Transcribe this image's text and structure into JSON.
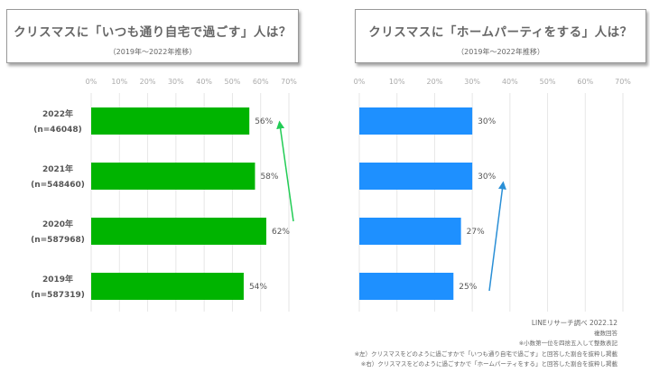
{
  "chart_data": [
    {
      "type": "bar",
      "orientation": "horizontal",
      "title": "クリスマスに「いつも通り自宅で過ごす」人は？",
      "subtitle": "（2019年～2022年推移）",
      "categories": [
        [
          "2022年",
          "(n=46048)"
        ],
        [
          "2021年",
          "(n=548460)"
        ],
        [
          "2020年",
          "(n=587968)"
        ],
        [
          "2019年",
          "(n=587319)"
        ]
      ],
      "values": [
        56,
        58,
        62,
        54
      ],
      "xlim": [
        0,
        70
      ],
      "ticks": [
        "0%",
        "10%",
        "20%",
        "30%",
        "40%",
        "50%",
        "60%",
        "70%"
      ],
      "grid": true,
      "color": "#00b400",
      "arrow_color": "#22cc55"
    },
    {
      "type": "bar",
      "orientation": "horizontal",
      "title": "クリスマスに「ホームパーティをする」人は？",
      "subtitle": "（2019年～2022年推移）",
      "values": [
        30,
        30,
        27,
        25
      ],
      "xlim": [
        0,
        70
      ],
      "ticks": [
        "0%",
        "10%",
        "20%",
        "30%",
        "40%",
        "50%",
        "60%",
        "70%"
      ],
      "grid": true,
      "color": "#1e90ff",
      "arrow_color": "#2a8fd6"
    }
  ],
  "notes": [
    "LINEリサーチ調べ 2022.12",
    "複数回答",
    "※小数第一位を四捨五入して整数表記",
    "※左）クリスマスをどのように過ごすかで「いつも通り自宅で過ごす」と回答した割合を抜粋し掲載",
    "※右）クリスマスをどのように過ごすかで「ホームパーティをする」と回答した割合を抜粋し掲載"
  ]
}
